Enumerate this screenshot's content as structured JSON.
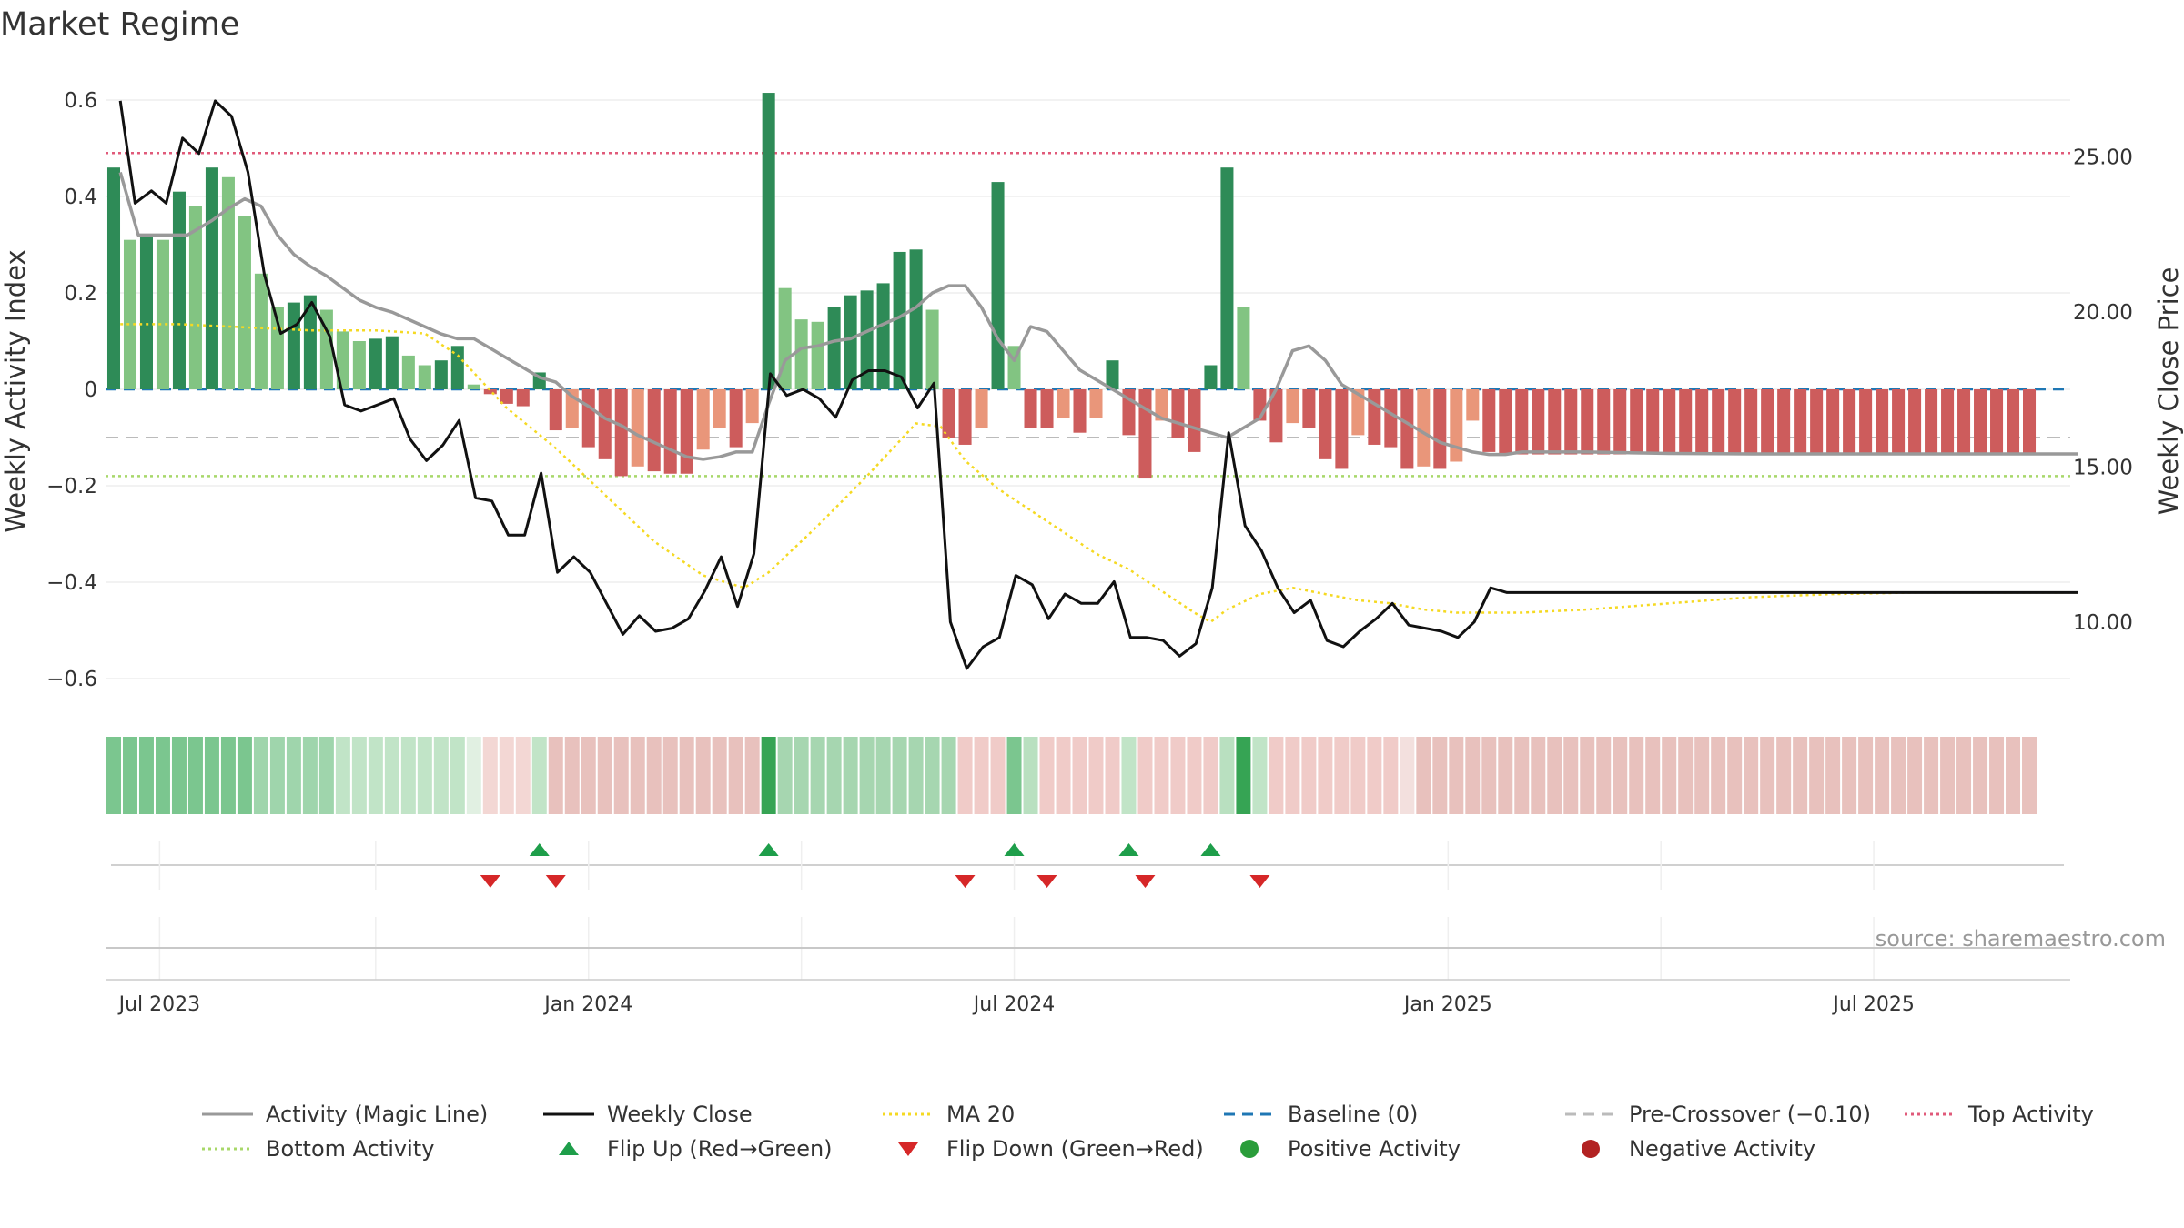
{
  "chart_data": {
    "type": "bar",
    "title": "Market Regime",
    "ylabel_left": "Weekly Activity Index",
    "ylabel_right": "Weekly Close Price",
    "source": "source: sharemaestro.com",
    "ylim_left": [
      -0.66,
      0.64
    ],
    "ylim_right": [
      7.2,
      27.5
    ],
    "left_ticks": [
      {
        "v": 0.6,
        "label": "0.6"
      },
      {
        "v": 0.4,
        "label": "0.4"
      },
      {
        "v": 0.2,
        "label": "0.2"
      },
      {
        "v": 0,
        "label": "0"
      },
      {
        "v": -0.2,
        "label": "−0.2"
      },
      {
        "v": -0.4,
        "label": "−0.4"
      },
      {
        "v": -0.6,
        "label": "−0.6"
      }
    ],
    "right_ticks": [
      {
        "v": 25,
        "label": "25.00"
      },
      {
        "v": 20,
        "label": "20.00"
      },
      {
        "v": 15,
        "label": "15.00"
      },
      {
        "v": 10,
        "label": "10.00"
      }
    ],
    "x_ticks": [
      {
        "week": 2.8,
        "label": "Jul 2023"
      },
      {
        "week": 29,
        "label": "Jan 2024"
      },
      {
        "week": 55,
        "label": "Jul 2024"
      },
      {
        "week": 81.5,
        "label": "Jan 2025"
      },
      {
        "week": 107.5,
        "label": "Jul 2025"
      }
    ],
    "minor_gridlines_weeks": [
      16,
      42,
      94.5
    ],
    "reference_lines": {
      "baseline": 0,
      "pre_crossover": -0.1,
      "top_activity": 0.49,
      "bottom_activity": -0.18
    },
    "activity": [
      0.46,
      0.31,
      0.32,
      0.31,
      0.41,
      0.38,
      0.46,
      0.44,
      0.36,
      0.24,
      0.17,
      0.18,
      0.195,
      0.165,
      0.12,
      0.1,
      0.105,
      0.11,
      0.07,
      0.05,
      0.06,
      0.09,
      0.01,
      -0.01,
      -0.03,
      -0.035,
      0.035,
      -0.085,
      -0.08,
      -0.12,
      -0.145,
      -0.18,
      -0.16,
      -0.17,
      -0.175,
      -0.175,
      -0.125,
      -0.08,
      -0.12,
      -0.07,
      0.615,
      0.21,
      0.145,
      0.14,
      0.17,
      0.195,
      0.205,
      0.22,
      0.285,
      0.29,
      0.165,
      -0.1,
      -0.115,
      -0.08,
      0.43,
      0.09,
      -0.08,
      -0.08,
      -0.06,
      -0.09,
      -0.06,
      0.06,
      -0.095,
      -0.185,
      -0.065,
      -0.1,
      -0.13,
      0.05,
      0.46,
      0.17,
      -0.065,
      -0.11,
      -0.07,
      -0.08,
      -0.145,
      -0.165,
      -0.095,
      -0.115,
      -0.12,
      -0.165,
      -0.16,
      -0.165,
      -0.15,
      -0.065,
      -0.13,
      -0.135,
      -0.135,
      -0.135,
      -0.135,
      -0.135,
      -0.135,
      -0.135,
      -0.135,
      -0.135,
      -0.135,
      -0.135,
      -0.135,
      -0.135,
      -0.135,
      -0.135,
      -0.135,
      -0.135,
      -0.135,
      -0.135,
      -0.135,
      -0.135,
      -0.135,
      -0.135,
      -0.135,
      -0.135,
      -0.135,
      -0.135,
      -0.135,
      -0.135,
      -0.135,
      -0.135,
      -0.135,
      -0.135
    ],
    "weekly_close": [
      [
        0.4,
        26.8
      ],
      [
        1.3,
        23.5
      ],
      [
        2.3,
        23.9
      ],
      [
        3.2,
        23.5
      ],
      [
        4.2,
        25.6
      ],
      [
        5.2,
        25.1
      ],
      [
        6.2,
        26.8
      ],
      [
        7.2,
        26.3
      ],
      [
        8.2,
        24.5
      ],
      [
        9.2,
        21.2
      ],
      [
        10.2,
        19.3
      ],
      [
        11.2,
        19.6
      ],
      [
        12.1,
        20.3
      ],
      [
        13.2,
        19.2
      ],
      [
        14.1,
        17.0
      ],
      [
        15.1,
        16.8
      ],
      [
        16.1,
        17.0
      ],
      [
        17.1,
        17.2
      ],
      [
        18.1,
        15.9
      ],
      [
        19.1,
        15.2
      ],
      [
        20.1,
        15.7
      ],
      [
        21.1,
        16.5
      ],
      [
        22.1,
        14.0
      ],
      [
        23.1,
        13.9
      ],
      [
        24.1,
        12.8
      ],
      [
        25.1,
        12.8
      ],
      [
        26.1,
        14.8
      ],
      [
        27.1,
        11.6
      ],
      [
        28.1,
        12.1
      ],
      [
        29.1,
        11.6
      ],
      [
        30.1,
        10.6
      ],
      [
        31.1,
        9.6
      ],
      [
        32.1,
        10.2
      ],
      [
        33.1,
        9.7
      ],
      [
        34.1,
        9.8
      ],
      [
        35.1,
        10.1
      ],
      [
        36.1,
        11.0
      ],
      [
        37.1,
        12.1
      ],
      [
        38.1,
        10.5
      ],
      [
        39.1,
        12.2
      ],
      [
        40.1,
        18.0
      ],
      [
        41.1,
        17.3
      ],
      [
        42.1,
        17.5
      ],
      [
        43.1,
        17.2
      ],
      [
        44.1,
        16.6
      ],
      [
        45.1,
        17.8
      ],
      [
        46.1,
        18.1
      ],
      [
        47.1,
        18.1
      ],
      [
        48.1,
        17.9
      ],
      [
        49.1,
        16.9
      ],
      [
        50.1,
        17.7
      ],
      [
        51.1,
        10.0
      ],
      [
        52.1,
        8.5
      ],
      [
        53.1,
        9.2
      ],
      [
        54.1,
        9.5
      ],
      [
        55.1,
        11.5
      ],
      [
        56.1,
        11.2
      ],
      [
        57.1,
        10.1
      ],
      [
        58.1,
        10.9
      ],
      [
        59.1,
        10.6
      ],
      [
        60.1,
        10.6
      ],
      [
        61.1,
        11.3
      ],
      [
        62.1,
        9.5
      ],
      [
        63.1,
        9.5
      ],
      [
        64.1,
        9.4
      ],
      [
        65.1,
        8.9
      ],
      [
        66.1,
        9.3
      ],
      [
        67.1,
        11.1
      ],
      [
        68.1,
        16.1
      ],
      [
        69.1,
        13.1
      ],
      [
        70.1,
        12.3
      ],
      [
        71.1,
        11.1
      ],
      [
        72.1,
        10.3
      ],
      [
        73.1,
        10.7
      ],
      [
        74.1,
        9.4
      ],
      [
        75.1,
        9.2
      ],
      [
        76.1,
        9.7
      ],
      [
        77.1,
        10.1
      ],
      [
        78.1,
        10.6
      ],
      [
        79.1,
        9.9
      ],
      [
        80.1,
        9.8
      ],
      [
        81.1,
        9.7
      ],
      [
        82.1,
        9.5
      ],
      [
        83.1,
        10.0
      ],
      [
        84.1,
        11.1
      ],
      [
        85.1,
        10.95
      ],
      [
        120,
        10.95
      ]
    ],
    "ma20": [
      [
        0.4,
        19.6
      ],
      [
        4,
        19.6
      ],
      [
        8,
        19.5
      ],
      [
        12,
        19.4
      ],
      [
        16,
        19.4
      ],
      [
        19,
        19.3
      ],
      [
        21,
        18.6
      ],
      [
        24,
        16.9
      ],
      [
        27,
        15.6
      ],
      [
        30,
        14.1
      ],
      [
        33,
        12.6
      ],
      [
        36,
        11.5
      ],
      [
        38.5,
        11.1
      ],
      [
        40,
        11.6
      ],
      [
        43,
        13.1
      ],
      [
        46,
        14.7
      ],
      [
        49,
        16.4
      ],
      [
        50.5,
        16.3
      ],
      [
        52,
        15.2
      ],
      [
        54,
        14.3
      ],
      [
        56,
        13.6
      ],
      [
        58,
        12.9
      ],
      [
        60,
        12.2
      ],
      [
        62,
        11.7
      ],
      [
        64,
        11.0
      ],
      [
        66,
        10.3
      ],
      [
        67,
        10.0
      ],
      [
        68,
        10.4
      ],
      [
        70,
        10.9
      ],
      [
        72,
        11.1
      ],
      [
        74,
        10.9
      ],
      [
        76,
        10.7
      ],
      [
        78,
        10.6
      ],
      [
        80,
        10.4
      ],
      [
        82,
        10.3
      ],
      [
        84,
        10.3
      ],
      [
        86,
        10.3
      ],
      [
        90,
        10.4
      ],
      [
        95,
        10.6
      ],
      [
        100,
        10.8
      ],
      [
        105,
        10.9
      ],
      [
        110,
        10.95
      ],
      [
        120,
        10.95
      ]
    ],
    "magic_line": [
      [
        0.4,
        0.45
      ],
      [
        1.5,
        0.32
      ],
      [
        3,
        0.32
      ],
      [
        4.5,
        0.32
      ],
      [
        6,
        0.35
      ],
      [
        7,
        0.375
      ],
      [
        8,
        0.395
      ],
      [
        9,
        0.38
      ],
      [
        10,
        0.32
      ],
      [
        11,
        0.28
      ],
      [
        12,
        0.255
      ],
      [
        13,
        0.235
      ],
      [
        14,
        0.21
      ],
      [
        15,
        0.185
      ],
      [
        16,
        0.17
      ],
      [
        17,
        0.16
      ],
      [
        18,
        0.145
      ],
      [
        19,
        0.13
      ],
      [
        20,
        0.115
      ],
      [
        21,
        0.105
      ],
      [
        22,
        0.105
      ],
      [
        23,
        0.085
      ],
      [
        24,
        0.065
      ],
      [
        25,
        0.045
      ],
      [
        26,
        0.025
      ],
      [
        27,
        0.015
      ],
      [
        28,
        -0.015
      ],
      [
        29,
        -0.035
      ],
      [
        30,
        -0.06
      ],
      [
        31,
        -0.075
      ],
      [
        32,
        -0.095
      ],
      [
        33,
        -0.11
      ],
      [
        34,
        -0.125
      ],
      [
        35,
        -0.14
      ],
      [
        36,
        -0.145
      ],
      [
        37,
        -0.14
      ],
      [
        38,
        -0.13
      ],
      [
        39,
        -0.13
      ],
      [
        40,
        -0.03
      ],
      [
        41,
        0.06
      ],
      [
        42,
        0.085
      ],
      [
        43,
        0.09
      ],
      [
        44,
        0.1
      ],
      [
        45,
        0.105
      ],
      [
        46,
        0.12
      ],
      [
        47,
        0.135
      ],
      [
        48,
        0.15
      ],
      [
        49,
        0.17
      ],
      [
        50,
        0.2
      ],
      [
        51,
        0.215
      ],
      [
        52,
        0.215
      ],
      [
        53,
        0.17
      ],
      [
        54,
        0.105
      ],
      [
        55,
        0.06
      ],
      [
        56,
        0.13
      ],
      [
        57,
        0.12
      ],
      [
        58,
        0.08
      ],
      [
        59,
        0.04
      ],
      [
        60,
        0.02
      ],
      [
        61,
        0.0
      ],
      [
        62,
        -0.02
      ],
      [
        63,
        -0.04
      ],
      [
        64,
        -0.06
      ],
      [
        65,
        -0.07
      ],
      [
        66,
        -0.08
      ],
      [
        67,
        -0.09
      ],
      [
        68,
        -0.1
      ],
      [
        69,
        -0.08
      ],
      [
        70,
        -0.06
      ],
      [
        71,
        0.0
      ],
      [
        72,
        0.08
      ],
      [
        73,
        0.09
      ],
      [
        74,
        0.06
      ],
      [
        75,
        0.01
      ],
      [
        76,
        -0.01
      ],
      [
        77,
        -0.03
      ],
      [
        78,
        -0.05
      ],
      [
        79,
        -0.07
      ],
      [
        80,
        -0.09
      ],
      [
        81,
        -0.11
      ],
      [
        82,
        -0.12
      ],
      [
        83,
        -0.13
      ],
      [
        84,
        -0.135
      ],
      [
        85,
        -0.135
      ],
      [
        86,
        -0.13
      ],
      [
        87,
        -0.13
      ],
      [
        88,
        -0.13
      ],
      [
        89,
        -0.13
      ],
      [
        90,
        -0.13
      ],
      [
        95,
        -0.133
      ],
      [
        100,
        -0.134
      ],
      [
        110,
        -0.134
      ],
      [
        120,
        -0.134
      ]
    ],
    "flip_up_weeks": [
      26,
      40,
      55,
      62,
      67
    ],
    "flip_down_weeks": [
      23,
      27,
      52,
      57,
      63,
      70
    ],
    "regime_strip": [
      {
        "count": 9,
        "color": "#7bc68f"
      },
      {
        "count": 5,
        "color": "#9fd5ac"
      },
      {
        "count": 8,
        "color": "#c1e4c7"
      },
      {
        "count": 1,
        "color": "#e1f0e2"
      },
      {
        "count": 3,
        "color": "#f3d7d4"
      },
      {
        "count": 1,
        "color": "#c1e4c7"
      },
      {
        "count": 13,
        "color": "#e8c1bd"
      },
      {
        "count": 1,
        "color": "#36a454"
      },
      {
        "count": 11,
        "color": "#a6d6b0"
      },
      {
        "count": 3,
        "color": "#f0cbc8"
      },
      {
        "count": 1,
        "color": "#7bc68f"
      },
      {
        "count": 1,
        "color": "#b9e0c0"
      },
      {
        "count": 5,
        "color": "#f0cbc8"
      },
      {
        "count": 1,
        "color": "#c1e4c7"
      },
      {
        "count": 5,
        "color": "#f0cbc8"
      },
      {
        "count": 1,
        "color": "#b9e0c0"
      },
      {
        "count": 1,
        "color": "#36a454"
      },
      {
        "count": 1,
        "color": "#c1e4c7"
      },
      {
        "count": 8,
        "color": "#f0cbc8"
      },
      {
        "count": 1,
        "color": "#f3e0de"
      },
      {
        "count": 38,
        "color": "#e8c1bd"
      }
    ],
    "colors": {
      "bar_pos_strong": "#2e8b57",
      "bar_pos_light": "#82c482",
      "bar_neg_strong": "#cd5c5c",
      "bar_neg_light": "#e9967a",
      "weekly_close": "#111111",
      "magic_line": "#999999",
      "ma20": "#f5d922",
      "baseline": "#1f77b4",
      "pre_crossover": "#bbbbbb",
      "top_activity": "#e05a7a",
      "bottom_activity": "#a8d86a",
      "flip_up": "#1e9e4a",
      "flip_down": "#d62728",
      "positive_dot": "#2a9d3a",
      "negative_dot": "#b22222"
    },
    "legend": [
      {
        "label": "Activity (Magic Line)",
        "kind": "line",
        "color": "#999999",
        "dash": ""
      },
      {
        "label": "Weekly Close",
        "kind": "line",
        "color": "#111111",
        "dash": ""
      },
      {
        "label": "MA 20",
        "kind": "line",
        "color": "#f5d922",
        "dash": "3,4"
      },
      {
        "label": "Baseline (0)",
        "kind": "line",
        "color": "#1f77b4",
        "dash": "12,8"
      },
      {
        "label": "Pre-Crossover (−0.10)",
        "kind": "line",
        "color": "#bbbbbb",
        "dash": "12,8"
      },
      {
        "label": "Top Activity",
        "kind": "line",
        "color": "#e05a7a",
        "dash": "3,4"
      },
      {
        "label": "Bottom Activity",
        "kind": "line",
        "color": "#a8d86a",
        "dash": "3,4"
      },
      {
        "label": "Flip Up (Red→Green)",
        "kind": "triangle-up",
        "color": "#1e9e4a",
        "dash": ""
      },
      {
        "label": "Flip Down (Green→Red)",
        "kind": "triangle-down",
        "color": "#d62728",
        "dash": ""
      },
      {
        "label": "Positive Activity",
        "kind": "dot",
        "color": "#2a9d3a",
        "dash": ""
      },
      {
        "label": "Negative Activity",
        "kind": "dot",
        "color": "#b22222",
        "dash": ""
      }
    ]
  }
}
